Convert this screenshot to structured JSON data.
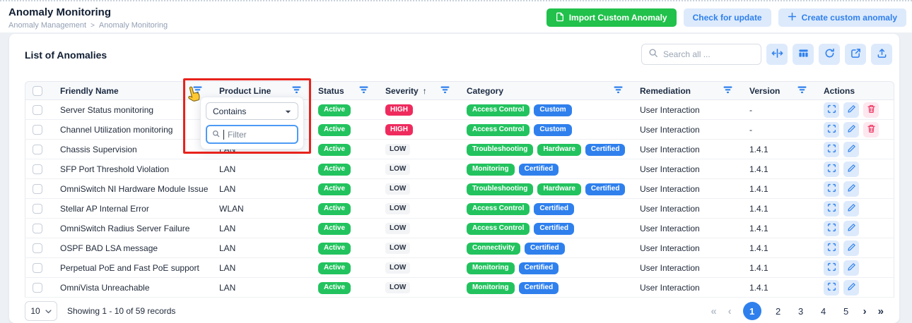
{
  "page": {
    "title": "Anomaly Monitoring",
    "breadcrumb": {
      "parent": "Anomaly Management",
      "separator": ">",
      "current": "Anomaly Monitoring"
    }
  },
  "header_actions": {
    "import_label": "Import Custom Anomaly",
    "check_update_label": "Check for update",
    "create_label": "Create custom anomaly"
  },
  "panel": {
    "title": "List of Anomalies",
    "search_placeholder": "Search all ..."
  },
  "filter_popup": {
    "column": "Product Line",
    "operator_selected": "Contains",
    "input_placeholder": "Filter"
  },
  "table": {
    "columns": [
      {
        "label": "Friendly Name",
        "filter": true,
        "sort": ""
      },
      {
        "label": "Product Line",
        "filter": true,
        "sort": ""
      },
      {
        "label": "Status",
        "filter": true,
        "sort": ""
      },
      {
        "label": "Severity",
        "filter": true,
        "sort": "↑"
      },
      {
        "label": "Category",
        "filter": true,
        "sort": ""
      },
      {
        "label": "Remediation",
        "filter": true,
        "sort": ""
      },
      {
        "label": "Version",
        "filter": true,
        "sort": ""
      },
      {
        "label": "Actions",
        "filter": false,
        "sort": ""
      }
    ],
    "rows": [
      {
        "name": "Server Status monitoring",
        "product_line": "",
        "status": "Active",
        "severity": "HIGH",
        "categories": [
          {
            "label": "Access Control",
            "color": "green"
          },
          {
            "label": "Custom",
            "color": "blue"
          }
        ],
        "remediation": "User Interaction",
        "version": "-",
        "deletable": true
      },
      {
        "name": "Channel Utilization monitoring",
        "product_line": "",
        "status": "Active",
        "severity": "HIGH",
        "categories": [
          {
            "label": "Access Control",
            "color": "green"
          },
          {
            "label": "Custom",
            "color": "blue"
          }
        ],
        "remediation": "User Interaction",
        "version": "-",
        "deletable": true
      },
      {
        "name": "Chassis Supervision",
        "product_line": "LAN",
        "status": "Active",
        "severity": "LOW",
        "categories": [
          {
            "label": "Troubleshooting",
            "color": "green"
          },
          {
            "label": "Hardware",
            "color": "green"
          },
          {
            "label": "Certified",
            "color": "blue"
          }
        ],
        "remediation": "User Interaction",
        "version": "1.4.1",
        "deletable": false
      },
      {
        "name": "SFP Port Threshold Violation",
        "product_line": "LAN",
        "status": "Active",
        "severity": "LOW",
        "categories": [
          {
            "label": "Monitoring",
            "color": "green"
          },
          {
            "label": "Certified",
            "color": "blue"
          }
        ],
        "remediation": "User Interaction",
        "version": "1.4.1",
        "deletable": false
      },
      {
        "name": "OmniSwitch NI Hardware Module Issue",
        "product_line": "LAN",
        "status": "Active",
        "severity": "LOW",
        "categories": [
          {
            "label": "Troubleshooting",
            "color": "green"
          },
          {
            "label": "Hardware",
            "color": "green"
          },
          {
            "label": "Certified",
            "color": "blue"
          }
        ],
        "remediation": "User Interaction",
        "version": "1.4.1",
        "deletable": false
      },
      {
        "name": "Stellar AP Internal Error",
        "product_line": "WLAN",
        "status": "Active",
        "severity": "LOW",
        "categories": [
          {
            "label": "Access Control",
            "color": "green"
          },
          {
            "label": "Certified",
            "color": "blue"
          }
        ],
        "remediation": "User Interaction",
        "version": "1.4.1",
        "deletable": false
      },
      {
        "name": "OmniSwitch Radius Server Failure",
        "product_line": "LAN",
        "status": "Active",
        "severity": "LOW",
        "categories": [
          {
            "label": "Access Control",
            "color": "green"
          },
          {
            "label": "Certified",
            "color": "blue"
          }
        ],
        "remediation": "User Interaction",
        "version": "1.4.1",
        "deletable": false
      },
      {
        "name": "OSPF BAD LSA message",
        "product_line": "LAN",
        "status": "Active",
        "severity": "LOW",
        "categories": [
          {
            "label": "Connectivity",
            "color": "green"
          },
          {
            "label": "Certified",
            "color": "blue"
          }
        ],
        "remediation": "User Interaction",
        "version": "1.4.1",
        "deletable": false
      },
      {
        "name": "Perpetual PoE and Fast PoE support",
        "product_line": "LAN",
        "status": "Active",
        "severity": "LOW",
        "categories": [
          {
            "label": "Monitoring",
            "color": "green"
          },
          {
            "label": "Certified",
            "color": "blue"
          }
        ],
        "remediation": "User Interaction",
        "version": "1.4.1",
        "deletable": false
      },
      {
        "name": "OmniVista Unreachable",
        "product_line": "LAN",
        "status": "Active",
        "severity": "LOW",
        "categories": [
          {
            "label": "Monitoring",
            "color": "green"
          },
          {
            "label": "Certified",
            "color": "blue"
          }
        ],
        "remediation": "User Interaction",
        "version": "1.4.1",
        "deletable": false
      }
    ]
  },
  "footer": {
    "page_size": "10",
    "showing_text": "Showing 1 - 10 of 59 records",
    "pages": [
      "1",
      "2",
      "3",
      "4",
      "5"
    ],
    "active_page": "1",
    "first_glyph": "«",
    "prev_glyph": "‹",
    "next_glyph": "›",
    "last_glyph": "»"
  },
  "colors": {
    "accent_blue": "#2f80ed",
    "badge_green": "#22c35e",
    "badge_blue": "#2f80ed",
    "severity_high_red": "#ef2b5e",
    "import_button_green": "#21c14b",
    "light_blue_bg": "#ddeafc",
    "delete_pink_bg": "#fde8ef",
    "highlight_rect_red": "#e8221c"
  }
}
